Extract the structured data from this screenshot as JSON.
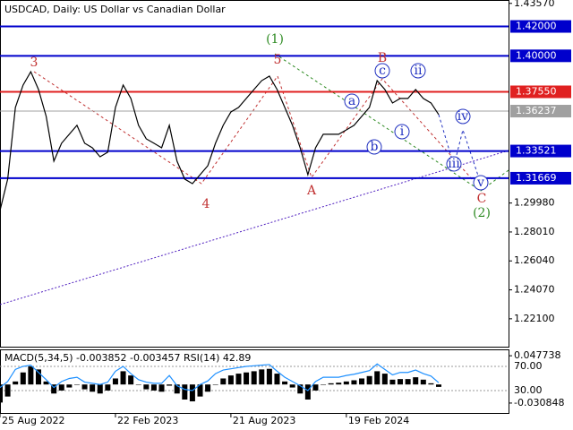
{
  "chart_data": [
    {
      "type": "line",
      "title": "USDCAD, Daily:  US Dollar vs Canadian Dollar",
      "color": "#000000",
      "categories": [
        "25 Aug 2022",
        null,
        null,
        null,
        null,
        null,
        null,
        null,
        null,
        null,
        null,
        null,
        null,
        null,
        null,
        "22 Feb 2023",
        null,
        null,
        null,
        null,
        null,
        null,
        null,
        null,
        null,
        null,
        null,
        null,
        null,
        null,
        "21 Aug 2023",
        null,
        null,
        null,
        null,
        null,
        null,
        null,
        null,
        null,
        null,
        null,
        null,
        null,
        null,
        "19 Feb 2024",
        null,
        null,
        null,
        null,
        null,
        null,
        null,
        null,
        null,
        null,
        null,
        null
      ],
      "values": [
        1.2947,
        1.3161,
        1.3649,
        1.3801,
        1.3892,
        1.3771,
        1.3588,
        1.3283,
        1.3405,
        1.3466,
        1.3527,
        1.3405,
        1.3374,
        1.3313,
        1.3344,
        1.3649,
        1.3801,
        1.371,
        1.3527,
        1.3435,
        1.3405,
        1.3374,
        1.3527,
        1.3283,
        1.3161,
        1.313,
        1.3191,
        1.3252,
        1.3405,
        1.3527,
        1.3618,
        1.3649,
        1.371,
        1.3771,
        1.3831,
        1.3862,
        1.3771,
        1.3649,
        1.3527,
        1.3374,
        1.3191,
        1.3374,
        1.3466,
        1.3466,
        1.3466,
        1.3496,
        1.3527,
        1.3588,
        1.3649,
        1.3831,
        1.3771,
        1.3679,
        1.371,
        1.371,
        1.3771,
        1.371,
        1.3679,
        1.36
      ],
      "ylim": [
        1.2014,
        1.438
      ],
      "yticks": [
        {
          "value": 1.4357,
          "label": "1.43570"
        },
        {
          "value": 1.2998,
          "label": "1.29980"
        },
        {
          "value": 1.2801,
          "label": "1.28010"
        },
        {
          "value": 1.2604,
          "label": "1.26040"
        },
        {
          "value": 1.2407,
          "label": "1.24070"
        },
        {
          "value": 1.221,
          "label": "1.22100"
        }
      ],
      "levels": [
        {
          "value": 1.42,
          "label": "1.42000",
          "color": "#0000cc"
        },
        {
          "value": 1.4,
          "label": "1.40000",
          "color": "#0000cc"
        },
        {
          "value": 1.3755,
          "label": "1.37550",
          "color": "#e02020"
        },
        {
          "value": 1.36237,
          "label": "1.36237",
          "color": "#a0a0a0"
        },
        {
          "value": 1.33521,
          "label": "1.33521",
          "color": "#0000cc"
        },
        {
          "value": 1.31669,
          "label": "1.31669",
          "color": "#0000cc"
        }
      ],
      "annotations": [
        {
          "text": "(1)",
          "color": "#2e8b22"
        },
        {
          "text": "5",
          "color": "#c03030"
        },
        {
          "text": "3",
          "color": "#c03030"
        },
        {
          "text": "4",
          "color": "#c03030"
        },
        {
          "text": "A",
          "color": "#c03030"
        },
        {
          "text": "B",
          "color": "#c03030"
        },
        {
          "text": "C",
          "color": "#c03030"
        },
        {
          "text": "(2)",
          "color": "#2e8b22"
        },
        {
          "text": "a",
          "color": "#2030c0"
        },
        {
          "text": "b",
          "color": "#2030c0"
        },
        {
          "text": "c",
          "color": "#2030c0"
        },
        {
          "text": "i",
          "color": "#2030c0"
        },
        {
          "text": "ii",
          "color": "#2030c0"
        },
        {
          "text": "iii",
          "color": "#2030c0"
        },
        {
          "text": "iv",
          "color": "#2030c0"
        },
        {
          "text": "v",
          "color": "#2030c0"
        }
      ]
    },
    {
      "type": "bar",
      "title": "MACD(5,34,5) -0.003852 -0.003457 RSI(14) 42.89",
      "ylim": [
        -0.0488,
        0.0583
      ],
      "yticks": [
        {
          "value": 0.047738,
          "label": "0.047738"
        },
        {
          "value": -0.030848,
          "label": "-0.030848"
        }
      ],
      "y2lim": [
        -8.5,
        98.1
      ],
      "y2ticks": [
        {
          "value": 70,
          "label": "70.00"
        },
        {
          "value": 30,
          "label": "30.00"
        }
      ],
      "series": [
        {
          "color": "#000000",
          "values": [
            -0.03,
            -0.02,
            0.005,
            0.02,
            0.03,
            0.025,
            0.005,
            -0.015,
            -0.01,
            -0.005,
            0.0,
            -0.008,
            -0.012,
            -0.015,
            -0.01,
            0.01,
            0.022,
            0.015,
            0.0,
            -0.008,
            -0.01,
            -0.012,
            -0.002,
            -0.015,
            -0.025,
            -0.028,
            -0.02,
            -0.012,
            0.0,
            0.01,
            0.015,
            0.018,
            0.02,
            0.022,
            0.025,
            0.026,
            0.018,
            0.005,
            -0.005,
            -0.015,
            -0.025,
            -0.01,
            0.0,
            0.002,
            0.003,
            0.005,
            0.007,
            0.01,
            0.014,
            0.022,
            0.018,
            0.008,
            0.009,
            0.009,
            0.012,
            0.008,
            0.002,
            -0.004
          ]
        },
        {
          "color": "#1e90ff",
          "axis": "y2",
          "values": [
            35,
            45,
            65,
            70,
            72,
            60,
            48,
            35,
            45,
            50,
            52,
            44,
            42,
            40,
            44,
            62,
            70,
            58,
            48,
            44,
            42,
            42,
            55,
            38,
            32,
            30,
            40,
            46,
            58,
            64,
            66,
            68,
            70,
            71,
            72,
            73,
            62,
            52,
            45,
            38,
            30,
            45,
            52,
            52,
            52,
            55,
            57,
            60,
            63,
            74,
            65,
            56,
            60,
            60,
            64,
            58,
            54,
            43
          ]
        }
      ]
    }
  ]
}
